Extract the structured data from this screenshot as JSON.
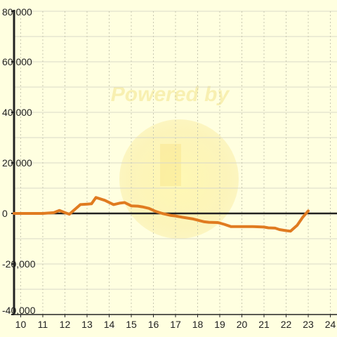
{
  "chart_data": {
    "type": "line",
    "title": "",
    "xlabel": "",
    "ylabel": "",
    "xlim": [
      9.7,
      24.3
    ],
    "ylim": [
      -40000,
      80000
    ],
    "x_ticks": [
      10,
      11,
      12,
      13,
      14,
      15,
      16,
      17,
      18,
      19,
      20,
      21,
      22,
      23,
      24
    ],
    "x_tick_labels": [
      "10",
      "11",
      "12",
      "13",
      "14",
      "15",
      "16",
      "17",
      "18",
      "19",
      "20",
      "21",
      "22",
      "23",
      "24"
    ],
    "y_ticks": [
      80000,
      60000,
      40000,
      20000,
      0,
      -20000,
      -40000
    ],
    "y_tick_labels": [
      "80,000",
      "60,000",
      "40,000",
      "20,000",
      "0",
      "-20,000",
      "-40,000"
    ],
    "grid": true,
    "zero_line": true,
    "watermark": "Powered by",
    "colors": {
      "background": "#ffffe0",
      "series": "#e07b20",
      "grid": "#d8d8c8",
      "axis": "#222222",
      "watermark": "#f3e48c"
    },
    "series": [
      {
        "x": [
          9.7,
          11.0,
          11.5,
          11.75,
          12.0,
          12.2,
          12.7,
          13.2,
          13.4,
          13.8,
          14.2,
          14.5,
          14.7,
          15.0,
          15.3,
          15.5,
          15.8,
          16.1,
          16.4,
          16.8,
          17.0,
          17.3,
          17.8,
          18.3,
          18.5,
          18.9,
          19.0,
          19.2,
          19.5,
          20.0,
          20.5,
          20.8,
          21.0,
          21.2,
          21.5,
          21.7,
          22.0,
          22.2,
          22.5,
          22.75,
          23.0
        ],
        "y": [
          0,
          0,
          300,
          1200,
          300,
          -300,
          3500,
          3800,
          6300,
          5200,
          3500,
          4100,
          4300,
          3000,
          2900,
          2600,
          2000,
          800,
          0,
          -800,
          -1000,
          -1500,
          -2200,
          -3300,
          -3500,
          -3600,
          -3800,
          -4300,
          -5200,
          -5200,
          -5200,
          -5300,
          -5400,
          -5700,
          -5800,
          -6400,
          -6800,
          -7000,
          -4700,
          -1500,
          1000
        ]
      }
    ]
  }
}
